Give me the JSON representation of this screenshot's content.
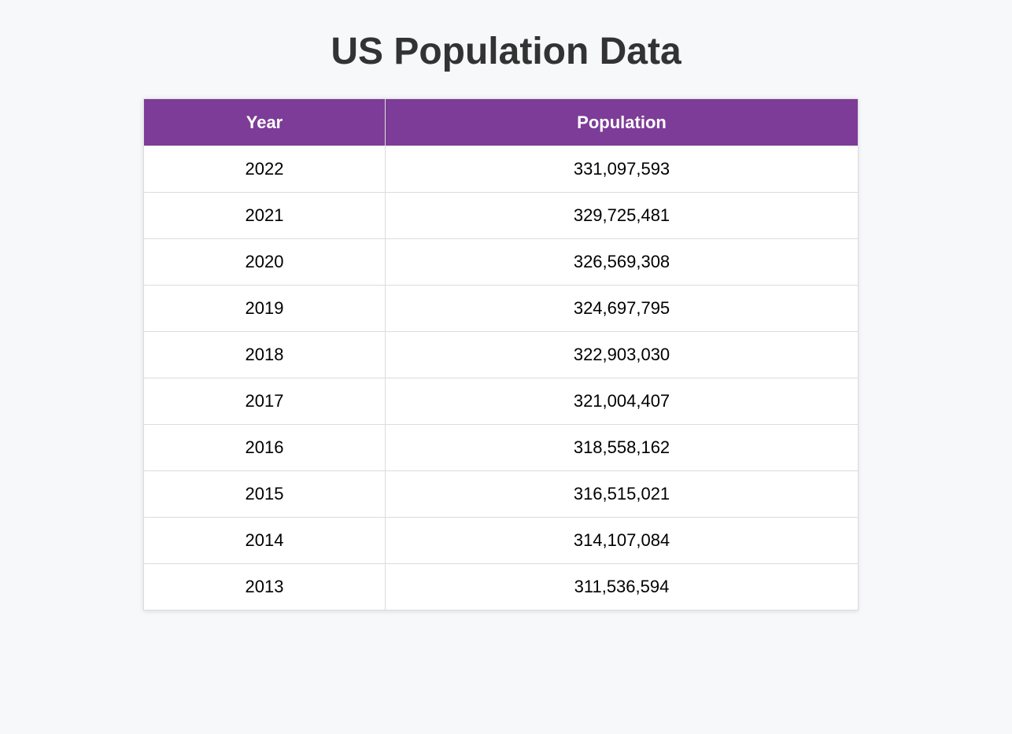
{
  "page": {
    "title": "US Population Data"
  },
  "table": {
    "header_color": "#7d3c98",
    "columns": [
      "Year",
      "Population"
    ],
    "rows": [
      [
        "2022",
        "331,097,593"
      ],
      [
        "2021",
        "329,725,481"
      ],
      [
        "2020",
        "326,569,308"
      ],
      [
        "2019",
        "324,697,795"
      ],
      [
        "2018",
        "322,903,030"
      ],
      [
        "2017",
        "321,004,407"
      ],
      [
        "2016",
        "318,558,162"
      ],
      [
        "2015",
        "316,515,021"
      ],
      [
        "2014",
        "314,107,084"
      ],
      [
        "2013",
        "311,536,594"
      ]
    ]
  }
}
